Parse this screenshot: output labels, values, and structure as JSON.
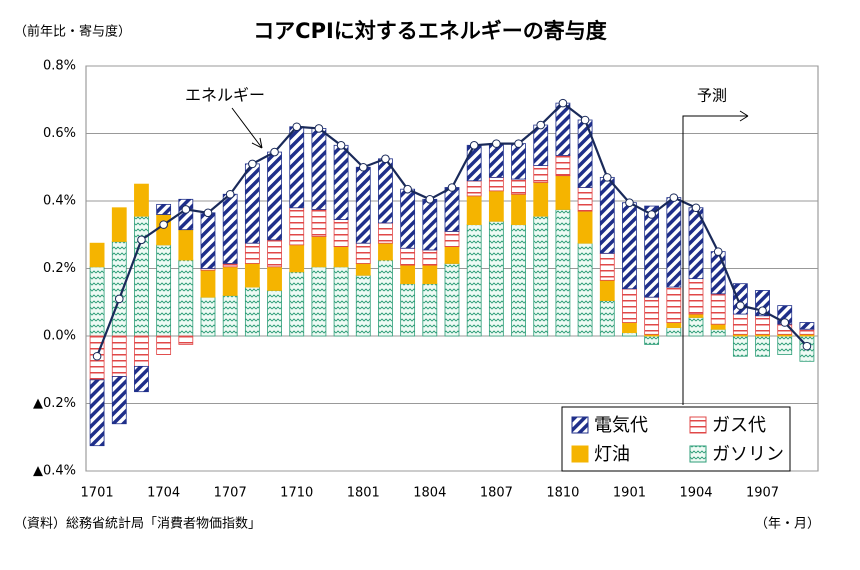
{
  "chart_data": {
    "type": "stacked_bar_line",
    "title": "コアCPIに対するエネルギーの寄与度",
    "y_axis_label": "（前年比・寄与度）",
    "x_axis_label": "（年・月）",
    "source": "（資料）総務省統計局「消費者物価指数」",
    "forecast_label": "予測",
    "categories": [
      "1701",
      null,
      null,
      "1704",
      null,
      null,
      "1707",
      null,
      null,
      "1710",
      null,
      null,
      "1801",
      null,
      null,
      "1804",
      null,
      null,
      "1807",
      null,
      null,
      "1810",
      null,
      null,
      "1901",
      null,
      null,
      "1904",
      null,
      null,
      "1907",
      null,
      null
    ],
    "series": [
      {
        "name": "電気代",
        "color": "#1f2f8a",
        "values": [
          -0.195,
          -0.14,
          -0.075,
          0.03,
          0.09,
          0.165,
          0.205,
          0.235,
          0.26,
          0.24,
          0.24,
          0.22,
          0.225,
          0.19,
          0.175,
          0.15,
          0.13,
          0.105,
          0.1,
          0.105,
          0.12,
          0.155,
          0.2,
          0.225,
          0.255,
          0.27,
          0.265,
          0.21,
          0.125,
          0.09,
          0.075,
          0.055,
          0.02
        ]
      },
      {
        "name": "ガス代",
        "color": "#e04848",
        "values": [
          -0.13,
          -0.12,
          -0.09,
          -0.055,
          -0.025,
          0.005,
          0.01,
          0.06,
          0.08,
          0.11,
          0.08,
          0.08,
          0.06,
          0.06,
          0.05,
          0.045,
          0.045,
          0.045,
          0.04,
          0.045,
          0.05,
          0.06,
          0.07,
          0.08,
          0.1,
          0.11,
          0.105,
          0.105,
          0.09,
          0.06,
          0.055,
          0.03,
          0.015
        ]
      },
      {
        "name": "灯油",
        "color": "#f5b400",
        "values": [
          0.07,
          0.1,
          0.095,
          0.09,
          0.09,
          0.08,
          0.085,
          0.07,
          0.07,
          0.08,
          0.09,
          0.06,
          0.035,
          0.05,
          0.055,
          0.055,
          0.05,
          0.085,
          0.09,
          0.09,
          0.1,
          0.1,
          0.095,
          0.06,
          0.03,
          0.005,
          0.015,
          0.01,
          0.015,
          0.005,
          0.005,
          0.005,
          0.005
        ]
      },
      {
        "name": "ガソリン",
        "color": "#2e9e78",
        "values": [
          0.205,
          0.28,
          0.355,
          0.27,
          0.225,
          0.115,
          0.12,
          0.145,
          0.135,
          0.19,
          0.205,
          0.205,
          0.18,
          0.225,
          0.155,
          0.155,
          0.215,
          0.33,
          0.34,
          0.33,
          0.355,
          0.375,
          0.275,
          0.105,
          0.01,
          -0.025,
          0.025,
          0.055,
          0.02,
          -0.06,
          -0.06,
          -0.055,
          -0.075
        ]
      }
    ],
    "line": {
      "name": "エネルギー",
      "color": "#1a2a5a",
      "values": [
        -0.06,
        0.11,
        0.285,
        0.33,
        0.375,
        0.365,
        0.42,
        0.51,
        0.545,
        0.62,
        0.615,
        0.565,
        0.5,
        0.525,
        0.435,
        0.405,
        0.44,
        0.565,
        0.57,
        0.57,
        0.625,
        0.69,
        0.64,
        0.47,
        0.395,
        0.36,
        0.41,
        0.38,
        0.25,
        0.09,
        0.075,
        0.04,
        -0.03
      ]
    },
    "ylim": [
      -0.4,
      0.8
    ],
    "yticks": [
      {
        "value": -0.4,
        "label": "▲0.4%"
      },
      {
        "value": -0.2,
        "label": "▲0.2%"
      },
      {
        "value": 0,
        "label": "0.0%"
      },
      {
        "value": 0.2,
        "label": "0.2%"
      },
      {
        "value": 0.4,
        "label": "0.4%"
      },
      {
        "value": 0.6,
        "label": "0.6%"
      },
      {
        "value": 0.8,
        "label": "0.8%"
      }
    ],
    "grid": true
  }
}
